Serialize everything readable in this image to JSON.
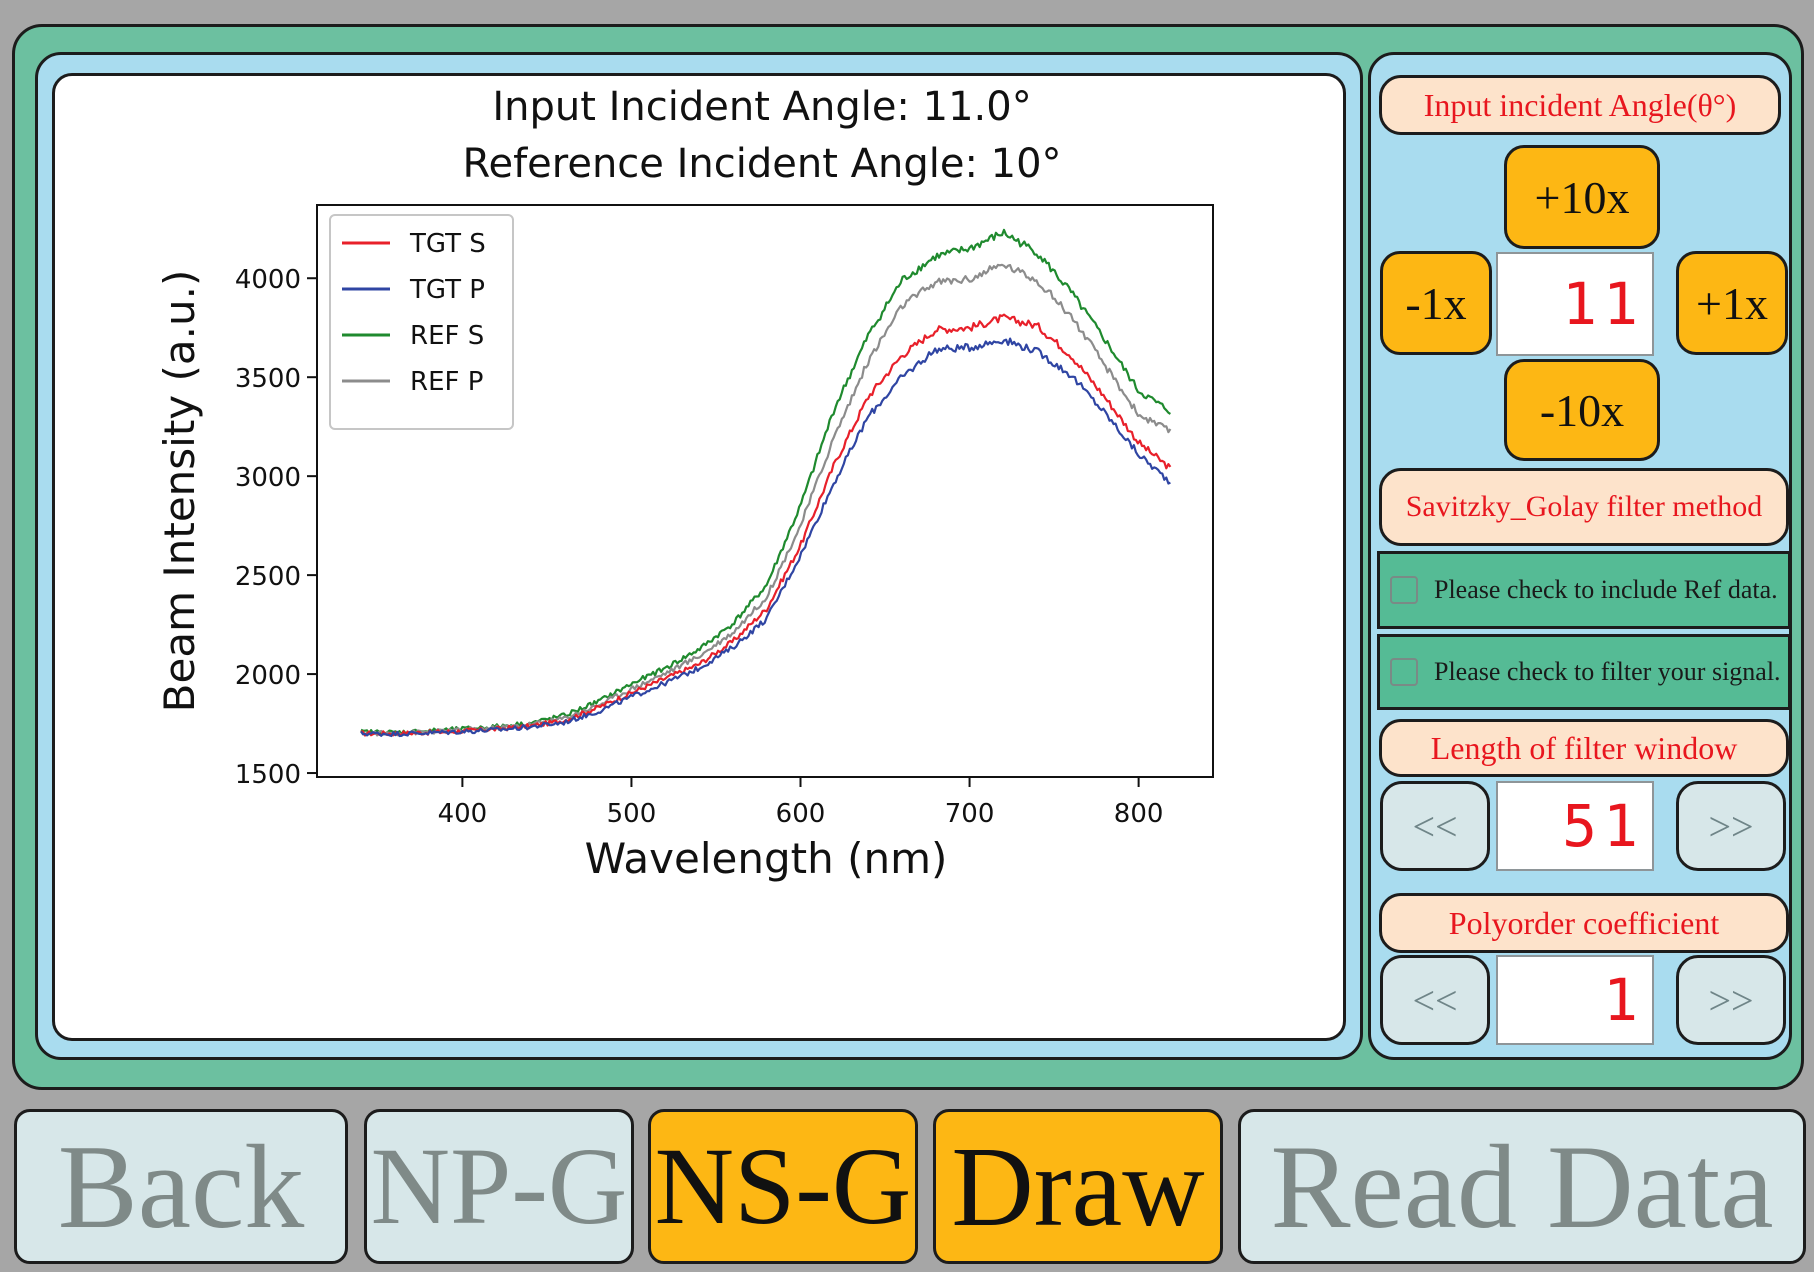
{
  "plot": {
    "chart_data": {
      "type": "line",
      "title": "Input Incident Angle: 11.0°",
      "subtitle": "Reference Incident Angle: 10°",
      "xlabel": "Wavelength (nm)",
      "ylabel": "Beam Intensity (a.u.)",
      "xlim": [
        314,
        844
      ],
      "ylim": [
        1480,
        4370
      ],
      "x_ticks": [
        400,
        500,
        600,
        700,
        800
      ],
      "y_ticks": [
        1500,
        2000,
        2500,
        3000,
        3500,
        4000
      ],
      "legend_position": "upper left",
      "x": [
        340,
        360,
        380,
        400,
        420,
        440,
        460,
        480,
        500,
        520,
        540,
        560,
        580,
        600,
        620,
        640,
        660,
        680,
        700,
        720,
        740,
        760,
        780,
        800,
        820
      ],
      "series": [
        {
          "name": "TGT S",
          "color": "#e8202a",
          "values": [
            1700,
            1700,
            1705,
            1712,
            1722,
            1737,
            1765,
            1830,
            1905,
            1978,
            2050,
            2165,
            2330,
            2650,
            3060,
            3400,
            3610,
            3740,
            3750,
            3800,
            3760,
            3610,
            3400,
            3170,
            3030
          ]
        },
        {
          "name": "TGT P",
          "color": "#2f45a3",
          "values": [
            1700,
            1698,
            1703,
            1710,
            1718,
            1733,
            1755,
            1810,
            1885,
            1955,
            2030,
            2135,
            2280,
            2600,
            2970,
            3300,
            3500,
            3640,
            3650,
            3690,
            3630,
            3510,
            3320,
            3110,
            2960
          ]
        },
        {
          "name": "REF S",
          "color": "#1f8a2e",
          "values": [
            1708,
            1705,
            1713,
            1722,
            1735,
            1752,
            1790,
            1860,
            1950,
            2030,
            2125,
            2255,
            2450,
            2850,
            3340,
            3710,
            3990,
            4110,
            4150,
            4230,
            4130,
            3930,
            3690,
            3430,
            3320
          ]
        },
        {
          "name": "REF P",
          "color": "#8c8c8c",
          "values": [
            1703,
            1701,
            1708,
            1717,
            1728,
            1745,
            1776,
            1842,
            1925,
            2004,
            2090,
            2210,
            2390,
            2750,
            3200,
            3580,
            3860,
            3980,
            3995,
            4070,
            3990,
            3810,
            3560,
            3310,
            3220
          ]
        }
      ]
    }
  },
  "controls": {
    "angle_label": "Input incident Angle(θ°)",
    "btn_plus10": "+10x",
    "btn_minus1": "-1x",
    "angle_value": "11",
    "btn_plus1": "+1x",
    "btn_minus10": "-10x",
    "filter_method_label": "Savitzky_Golay filter method",
    "check_ref_label": "Please check to include Ref data.",
    "check_filter_label": "Please check to filter your signal.",
    "window_label": "Length of filter window",
    "window_prev": "<<",
    "window_value": "51",
    "window_next": ">>",
    "poly_label": "Polyorder coefficient",
    "poly_prev": "<<",
    "poly_value": "1",
    "poly_next": ">>"
  },
  "bottom_bar": {
    "back": "Back",
    "np_g": "NP-G",
    "ns_g": "NS-G",
    "draw": "Draw",
    "read_data": "Read Data"
  },
  "colors": {
    "frame": "#6cc0a0",
    "panel": "#a9dcef",
    "accent": "#fdb714",
    "label_text": "#e8161e",
    "label_bg": "#fde3cb",
    "check_row": "#55bb95"
  }
}
